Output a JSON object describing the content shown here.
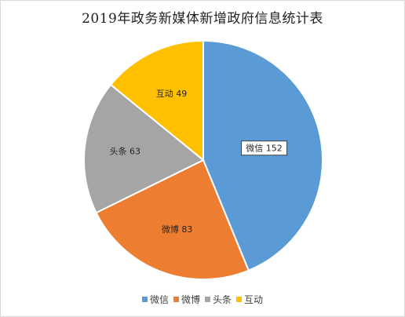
{
  "chart_data": {
    "type": "pie",
    "title": "2019年政务新媒体新增政府信息统计表",
    "categories": [
      "微信",
      "微博",
      "头条",
      "互动"
    ],
    "values": [
      152,
      83,
      63,
      49
    ],
    "colors": [
      "#5b9bd5",
      "#ed7d31",
      "#a5a5a5",
      "#ffc000"
    ],
    "legend_position": "bottom"
  }
}
